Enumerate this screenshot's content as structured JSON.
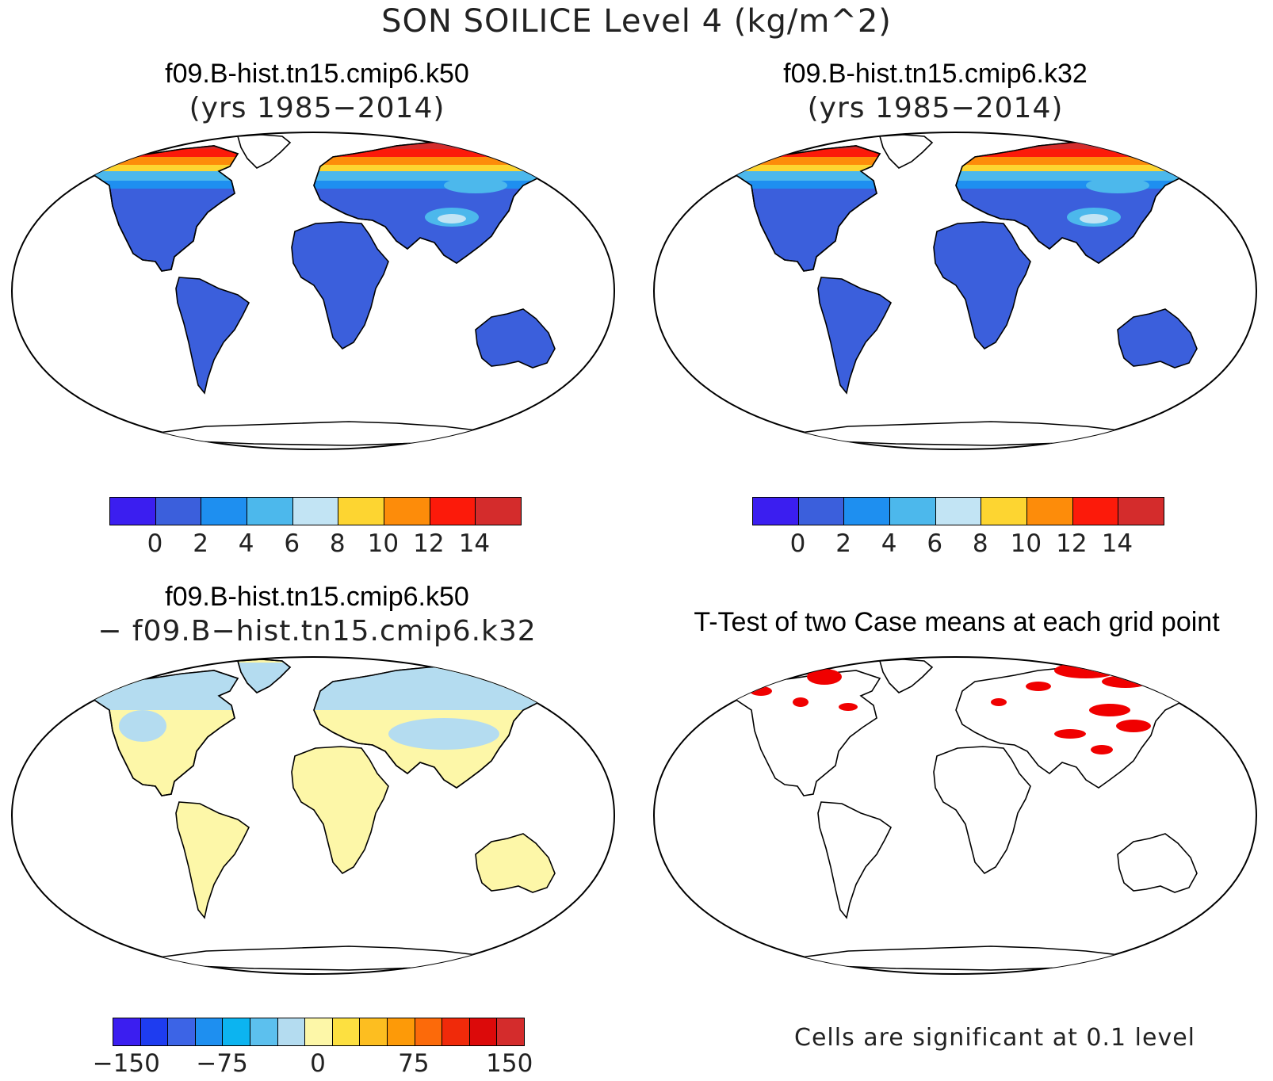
{
  "title": "SON SOILICE Level 4 (kg/m^2)",
  "panels": [
    {
      "title": "f09.B-hist.tn15.cmip6.k50",
      "subtitle": "(yrs 1985−2014)",
      "palette": "abs"
    },
    {
      "title": "f09.B-hist.tn15.cmip6.k32",
      "subtitle": "(yrs 1985−2014)",
      "palette": "abs"
    },
    {
      "title": "f09.B-hist.tn15.cmip6.k50",
      "subtitle": "− f09.B−hist.tn15.cmip6.k32",
      "palette": "diff"
    },
    {
      "title": "T-Test of two Case means at each grid point",
      "subtitle": "",
      "palette": "sig"
    }
  ],
  "colorbar_abs": {
    "colors": [
      "#3b1ef0",
      "#3b5fdc",
      "#1e8ff0",
      "#4cb8ec",
      "#c2e4f4",
      "#fdd531",
      "#fd8c0a",
      "#fc1a0a",
      "#d42c2c"
    ],
    "labels": [
      "0",
      "2",
      "4",
      "6",
      "8",
      "10",
      "12",
      "14"
    ]
  },
  "colorbar_diff": {
    "colors": [
      "#3b1ef0",
      "#1e3cf0",
      "#3c64e6",
      "#1e8ff0",
      "#0cb4f0",
      "#5cc0ee",
      "#b4dcf0",
      "#fdf7a8",
      "#fde040",
      "#fdbe20",
      "#fd9a08",
      "#fc6a0a",
      "#f02a0a",
      "#dc0a0a",
      "#d42c2c"
    ],
    "labels": [
      "−150",
      "−75",
      "0",
      "75",
      "150"
    ]
  },
  "significance_note": "Cells are significant at 0.1 level",
  "colors": {
    "land_abs": "#3b5fdc",
    "land_diff": "#fdf7a8",
    "signif": "#f00000",
    "outline": "#000000"
  }
}
